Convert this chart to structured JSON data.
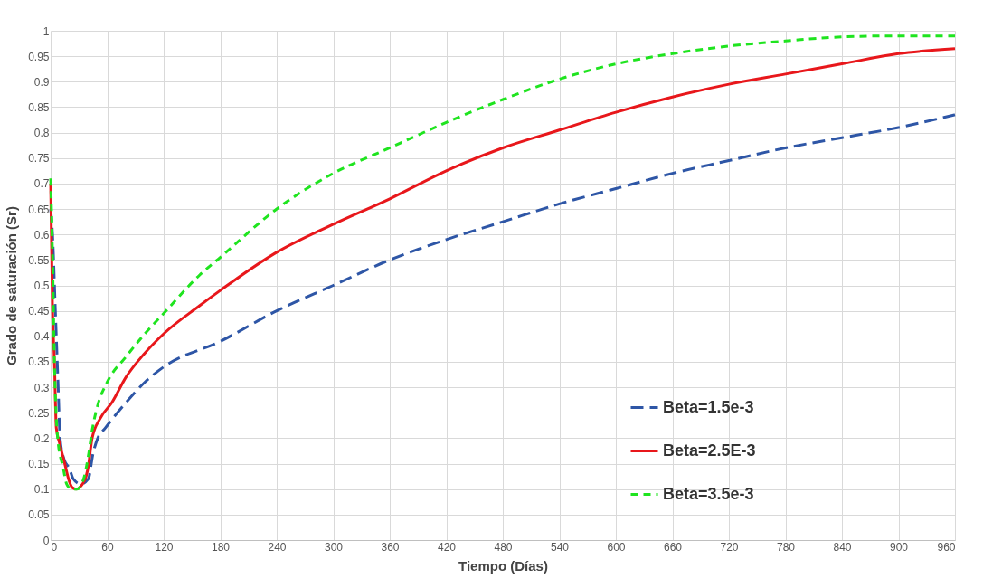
{
  "chart_data": {
    "type": "line",
    "xlabel": "Tiempo (Días)",
    "ylabel": "Grado de saturación (Sr)",
    "xlim": [
      0,
      960
    ],
    "xticks": [
      0,
      60,
      120,
      180,
      240,
      300,
      360,
      420,
      480,
      540,
      600,
      660,
      720,
      780,
      840,
      900,
      960
    ],
    "ylim": [
      0,
      1
    ],
    "yticks": [
      0,
      0.05,
      0.1,
      0.15,
      0.2,
      0.25,
      0.3,
      0.35,
      0.4,
      0.45,
      0.5,
      0.55,
      0.6,
      0.65,
      0.7,
      0.75,
      0.8,
      0.85,
      0.9,
      0.95,
      1
    ],
    "grid": true,
    "legend": "right",
    "marker": "none",
    "series": [
      {
        "name": "Beta=1.5e-3",
        "color": "#2e56a6",
        "line_style": "dashed",
        "x": [
          0,
          2,
          5,
          8,
          10,
          14,
          20,
          24,
          32,
          40,
          45,
          50,
          58,
          80,
          100,
          120,
          180,
          240,
          300,
          360,
          420,
          480,
          540,
          600,
          660,
          720,
          780,
          840,
          900,
          960
        ],
        "values": [
          0.65,
          0.6,
          0.45,
          0.3,
          0.2,
          0.16,
          0.14,
          0.12,
          0.11,
          0.12,
          0.17,
          0.2,
          0.22,
          0.27,
          0.31,
          0.34,
          0.39,
          0.45,
          0.5,
          0.55,
          0.59,
          0.625,
          0.66,
          0.69,
          0.72,
          0.745,
          0.77,
          0.79,
          0.81,
          0.835
        ]
      },
      {
        "name": "Beta=2.5E-3",
        "color": "#e8171b",
        "line_style": "solid",
        "x": [
          0,
          2,
          4,
          6,
          9.5,
          15,
          19,
          23,
          27,
          36,
          40,
          44,
          53,
          65,
          80,
          99,
          120,
          158,
          180,
          240,
          300,
          360,
          420,
          480,
          540,
          600,
          660,
          720,
          780,
          840,
          900,
          960
        ],
        "values": [
          0.7,
          0.45,
          0.35,
          0.22,
          0.19,
          0.15,
          0.12,
          0.103,
          0.1,
          0.117,
          0.145,
          0.2,
          0.24,
          0.27,
          0.32,
          0.365,
          0.405,
          0.46,
          0.49,
          0.565,
          0.62,
          0.67,
          0.725,
          0.77,
          0.805,
          0.84,
          0.87,
          0.895,
          0.915,
          0.935,
          0.955,
          0.965
        ]
      },
      {
        "name": "Beta=3.5e-3",
        "color": "#1fe41f",
        "line_style": "dashed",
        "x": [
          0,
          2,
          4,
          6,
          8,
          13,
          17,
          22,
          28,
          35,
          40,
          44,
          50,
          60,
          80,
          100,
          120,
          158,
          180,
          240,
          300,
          360,
          420,
          480,
          540,
          600,
          660,
          720,
          780,
          840,
          900,
          960
        ],
        "values": [
          0.71,
          0.56,
          0.35,
          0.24,
          0.19,
          0.145,
          0.11,
          0.1,
          0.1,
          0.12,
          0.165,
          0.215,
          0.265,
          0.31,
          0.36,
          0.405,
          0.445,
          0.52,
          0.555,
          0.65,
          0.72,
          0.77,
          0.82,
          0.865,
          0.905,
          0.935,
          0.955,
          0.97,
          0.98,
          0.988,
          0.99,
          0.99
        ]
      }
    ]
  }
}
